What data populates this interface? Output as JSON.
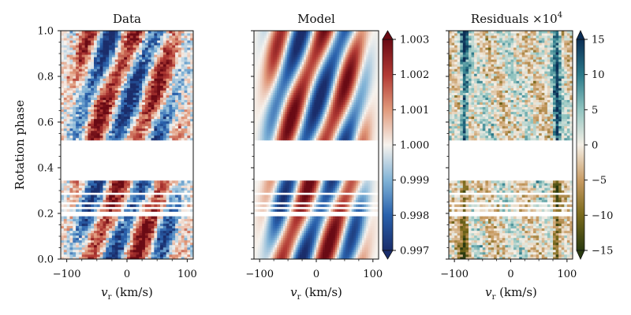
{
  "figure": {
    "colors": {
      "diverging_low": "#1a2d6b",
      "diverging_mid": "#f7f3ee",
      "diverging_high": "#6a0a14",
      "residual_low": "#2a3a10",
      "residual_mid": "#f5efe6",
      "residual_high": "#0b2e55"
    }
  },
  "chart_data": [
    {
      "type": "heatmap",
      "title": "Data",
      "xlabel": "v_r (km/s)",
      "ylabel": "Rotation phase",
      "xlim": [
        -110,
        110
      ],
      "ylim": [
        0,
        1
      ],
      "xticks": [
        "−100",
        "0",
        "100"
      ],
      "yticks": [
        "0.0",
        "0.2",
        "0.4",
        "0.6",
        "0.8",
        "1.0"
      ],
      "phase_coverage": [
        [
          0.0,
          0.19
        ],
        [
          0.205,
          0.215
        ],
        [
          0.225,
          0.24
        ],
        [
          0.245,
          0.28
        ],
        [
          0.29,
          0.345
        ],
        [
          0.52,
          1.0
        ]
      ],
      "value_range": [
        0.997,
        1.003
      ],
      "noisy": true
    },
    {
      "type": "heatmap",
      "title": "Model",
      "xlabel": "v_r (km/s)",
      "xlim": [
        -110,
        110
      ],
      "ylim": [
        0,
        1
      ],
      "xticks": [
        "−100",
        "0",
        "100"
      ],
      "phase_coverage": [
        [
          0.0,
          0.19
        ],
        [
          0.205,
          0.215
        ],
        [
          0.225,
          0.24
        ],
        [
          0.245,
          0.28
        ],
        [
          0.29,
          0.345
        ],
        [
          0.52,
          1.0
        ]
      ],
      "colorbar": {
        "ticks": [
          "0.997",
          "0.998",
          "0.999",
          "1.000",
          "1.001",
          "1.002",
          "1.003"
        ],
        "range": [
          0.997,
          1.003
        ]
      }
    },
    {
      "type": "heatmap",
      "title": "Residuals ×10",
      "title_superscript": "4",
      "xlabel": "v_r (km/s)",
      "xlim": [
        -110,
        110
      ],
      "ylim": [
        0,
        1
      ],
      "xticks": [
        "−100",
        "0",
        "100"
      ],
      "phase_coverage": [
        [
          0.0,
          0.19
        ],
        [
          0.205,
          0.215
        ],
        [
          0.225,
          0.24
        ],
        [
          0.245,
          0.28
        ],
        [
          0.29,
          0.345
        ],
        [
          0.52,
          1.0
        ]
      ],
      "colorbar": {
        "ticks": [
          "−15",
          "−10",
          "−5",
          "0",
          "5",
          "10",
          "15"
        ],
        "range": [
          -15,
          15
        ]
      }
    }
  ]
}
